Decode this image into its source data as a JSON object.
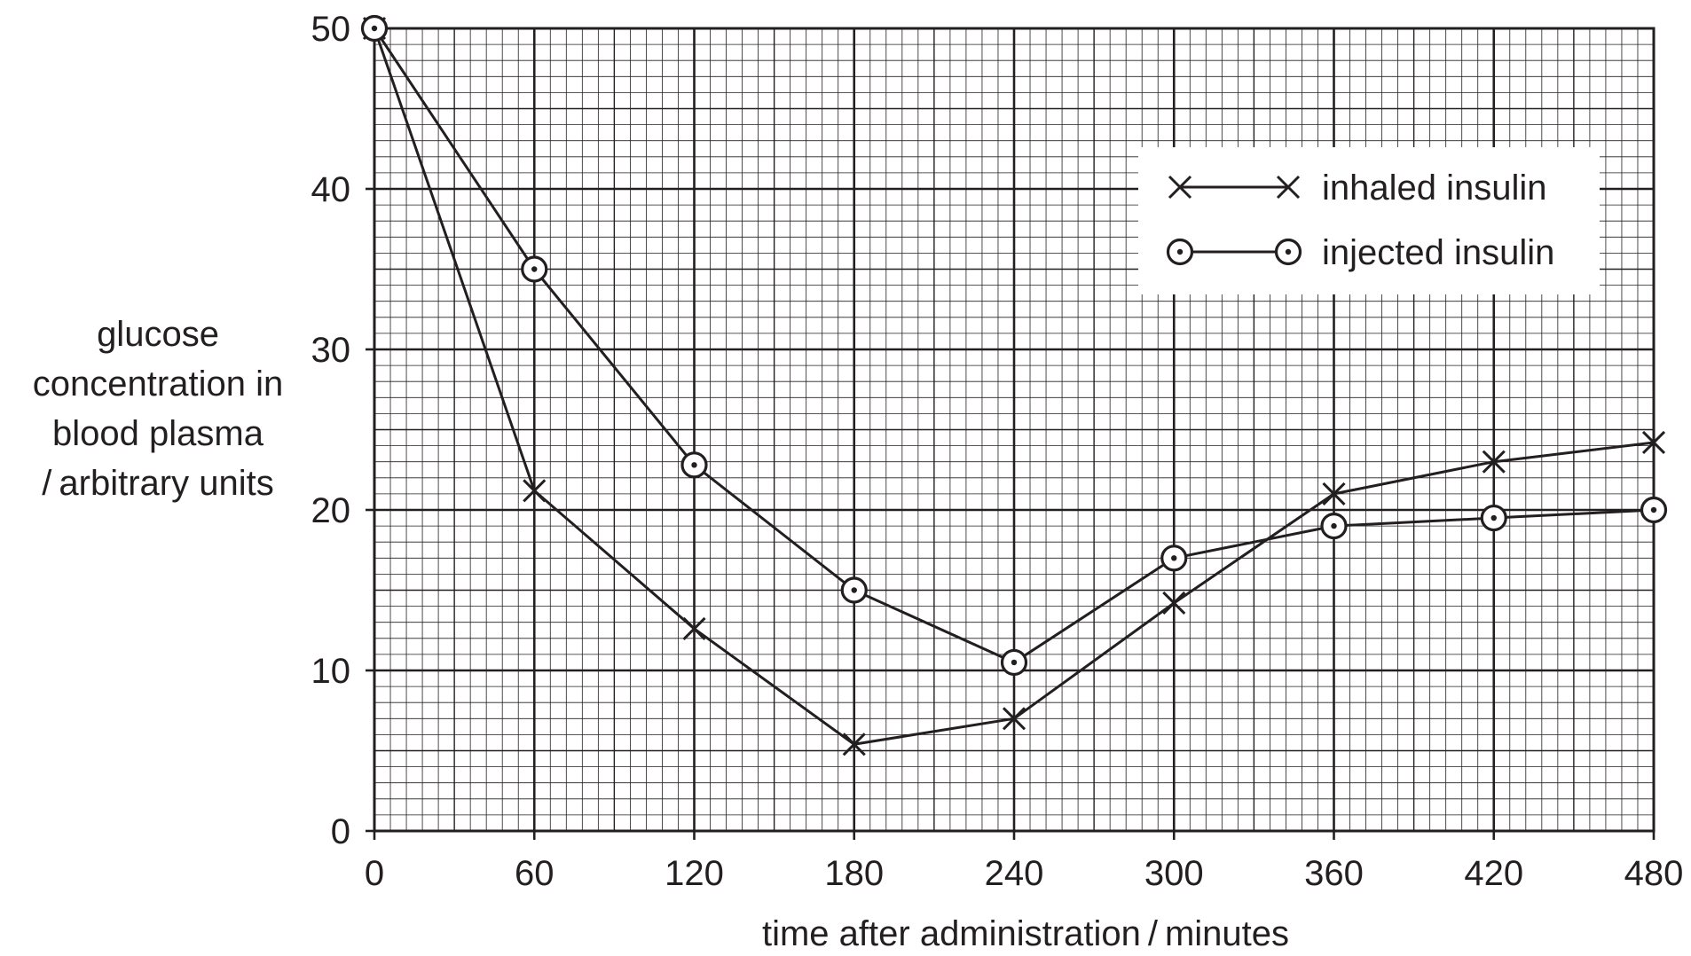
{
  "chart_data": {
    "type": "line",
    "xlabel": "time after administration / minutes",
    "ylabel_lines": [
      "glucose",
      "concentration in",
      "blood plasma",
      "/ arbitrary units"
    ],
    "x_ticks": [
      0,
      60,
      120,
      180,
      240,
      300,
      360,
      420,
      480
    ],
    "y_ticks": [
      0,
      10,
      20,
      30,
      40,
      50
    ],
    "xlim": [
      0,
      480
    ],
    "ylim": [
      0,
      50
    ],
    "grid": true,
    "legend_position": "top-right",
    "series": [
      {
        "name": "inhaled insulin",
        "marker": "cross",
        "x": [
          0,
          60,
          120,
          180,
          240,
          300,
          360,
          420,
          480
        ],
        "y": [
          50,
          21.2,
          12.6,
          5.4,
          7.0,
          14.2,
          21.0,
          23.0,
          24.2
        ]
      },
      {
        "name": "injected insulin",
        "marker": "circle-dot",
        "x": [
          0,
          60,
          120,
          180,
          240,
          300,
          360,
          420,
          480
        ],
        "y": [
          50,
          35.0,
          22.8,
          15.0,
          10.5,
          17.0,
          19.0,
          19.5,
          20.0
        ]
      }
    ]
  }
}
